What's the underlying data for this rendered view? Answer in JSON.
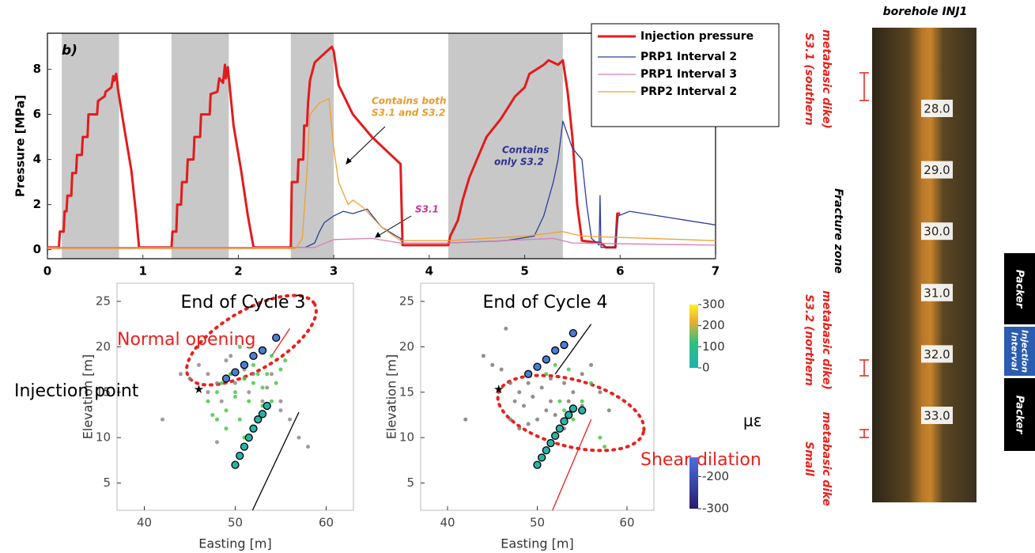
{
  "chart_data": [
    {
      "type": "line",
      "panel_label": "b)",
      "ylabel": "Pressure [MPa]",
      "xlim": [
        0,
        7
      ],
      "xticks": [
        0,
        1,
        2,
        3,
        4,
        5,
        6,
        7
      ],
      "ylim": [
        -0.4,
        9.6
      ],
      "yticks": [
        0,
        2,
        4,
        6,
        8
      ],
      "grid": false,
      "legend": "upper right",
      "shaded_intervals": [
        [
          0.15,
          0.75
        ],
        [
          1.3,
          1.9
        ],
        [
          2.55,
          3.0
        ],
        [
          4.2,
          5.4
        ]
      ],
      "shade_color": "#c8c8c8",
      "series": [
        {
          "name": "Injection pressure",
          "color": "#e41a1c",
          "width": 3,
          "x": [
            0,
            0.12,
            0.13,
            0.17,
            0.18,
            0.2,
            0.21,
            0.25,
            0.26,
            0.3,
            0.31,
            0.36,
            0.37,
            0.42,
            0.43,
            0.52,
            0.53,
            0.6,
            0.61,
            0.67,
            0.69,
            0.7,
            0.72,
            0.74,
            0.8,
            0.88,
            0.93,
            0.96,
            1.3,
            1.31,
            1.35,
            1.36,
            1.4,
            1.41,
            1.46,
            1.47,
            1.53,
            1.54,
            1.6,
            1.61,
            1.7,
            1.71,
            1.78,
            1.8,
            1.84,
            1.86,
            1.87,
            1.89,
            1.95,
            2.03,
            2.1,
            2.16,
            2.5,
            2.55,
            2.56,
            2.62,
            2.63,
            2.68,
            2.69,
            2.72,
            2.73,
            2.75,
            2.8,
            2.9,
            2.98,
            3.0,
            3.05,
            3.2,
            3.4,
            3.7,
            3.72,
            4.2,
            4.22,
            4.3,
            4.35,
            4.42,
            4.5,
            4.6,
            4.75,
            4.9,
            5.0,
            5.05,
            5.2,
            5.25,
            5.35,
            5.4,
            5.45,
            5.5,
            5.55,
            5.6,
            5.8,
            5.85,
            5.95,
            5.97,
            6.0
          ],
          "values": [
            0.1,
            0.1,
            0.8,
            0.8,
            1.7,
            1.7,
            2.4,
            2.4,
            3.4,
            3.4,
            4.2,
            4.2,
            5.0,
            5.0,
            6.0,
            6.0,
            6.6,
            6.8,
            7.0,
            7.2,
            7.7,
            7.5,
            7.8,
            7.1,
            5.5,
            3.5,
            1.5,
            0.1,
            0.1,
            0.8,
            0.8,
            2.0,
            2.0,
            3.0,
            3.0,
            4.0,
            4.0,
            5.0,
            5.0,
            6.0,
            6.0,
            6.9,
            7.0,
            7.6,
            7.4,
            8.2,
            7.6,
            8.1,
            5.5,
            3.5,
            1.5,
            0.1,
            0.1,
            0.1,
            3.0,
            3.0,
            4.0,
            4.0,
            5.5,
            5.5,
            6.5,
            7.5,
            8.3,
            8.7,
            9.0,
            8.8,
            7.3,
            6.0,
            5.0,
            3.8,
            0.2,
            0.2,
            0.6,
            1.3,
            2.2,
            3.2,
            4.0,
            5.0,
            5.8,
            6.8,
            7.2,
            7.8,
            8.2,
            8.4,
            8.2,
            8.4,
            7.0,
            5.0,
            2.0,
            0.4,
            0.3,
            0.1,
            0.1,
            1.6,
            1.6
          ]
        },
        {
          "name": "PRP1 Interval 2",
          "color": "#2c3e9e",
          "width": 1.3,
          "x": [
            0,
            2.7,
            2.8,
            2.85,
            2.9,
            3.0,
            3.1,
            3.2,
            3.35,
            3.5,
            3.7,
            3.72,
            4.2,
            4.8,
            5.1,
            5.2,
            5.3,
            5.35,
            5.4,
            5.5,
            5.6,
            5.65,
            5.7,
            5.78,
            5.79,
            5.8,
            5.95,
            5.98,
            6.1,
            7
          ],
          "values": [
            0.1,
            0.1,
            0.3,
            0.8,
            1.2,
            1.5,
            1.7,
            1.6,
            1.8,
            1.0,
            0.5,
            0.3,
            0.3,
            0.4,
            0.6,
            1.5,
            3.0,
            4.0,
            5.7,
            4.5,
            4.0,
            2.0,
            0.5,
            0.2,
            2.4,
            0.1,
            0.1,
            1.5,
            1.7,
            1.1
          ]
        },
        {
          "name": "PRP1 Interval 3",
          "color": "#d67fb4",
          "width": 1.3,
          "x": [
            0,
            2.8,
            3.0,
            3.4,
            3.7,
            4.2,
            5.3,
            5.5,
            7
          ],
          "values": [
            0.1,
            0.1,
            0.45,
            0.5,
            0.3,
            0.3,
            0.5,
            0.3,
            0.2
          ]
        },
        {
          "name": "PRP2 Interval 2",
          "color": "#f0a030",
          "width": 1.3,
          "x": [
            0,
            2.6,
            2.67,
            2.72,
            2.75,
            2.85,
            2.95,
            3.0,
            3.05,
            3.15,
            3.2,
            3.3,
            3.5,
            3.7,
            4.2,
            5.0,
            5.4,
            5.6,
            7
          ],
          "values": [
            0.05,
            0.05,
            0.5,
            3.5,
            6.0,
            6.5,
            6.7,
            4.5,
            3.0,
            2.0,
            2.2,
            1.9,
            1.0,
            0.4,
            0.4,
            0.6,
            0.8,
            0.6,
            0.4
          ]
        }
      ],
      "annotations": [
        {
          "lines": [
            "Contains both",
            "S3.1 and S3.2"
          ],
          "color": "#e89c2c"
        },
        {
          "lines": [
            "Contains",
            "only S3.2"
          ],
          "color": "#2e3192"
        },
        {
          "lines": [
            "S3.1"
          ],
          "color": "#cc3399"
        }
      ]
    },
    {
      "type": "scatter",
      "title": "End of Cycle 3",
      "xlabel": "Easting [m]",
      "ylabel": "Elevation [m]",
      "xlim": [
        37,
        63
      ],
      "xticks": [
        40,
        50,
        60
      ],
      "ylim": [
        2,
        27
      ],
      "yticks": [
        5,
        10,
        15,
        20,
        25
      ],
      "grid": false,
      "annotations": [
        {
          "text": "Normal opening",
          "color": "#e8211c"
        },
        {
          "text": "Injection point",
          "color": "#000000"
        }
      ],
      "lines": [
        {
          "color": "#000000",
          "x": [
            51.9,
            57
          ],
          "values": [
            2,
            12.8
          ]
        },
        {
          "color": "#e8211c",
          "x": [
            54,
            56
          ],
          "values": [
            19,
            22
          ]
        }
      ],
      "series": [
        {
          "marker": "dot",
          "color": "#8c7f86",
          "x": [
            44,
            45,
            46,
            47,
            47,
            48,
            48.5,
            49,
            49.5,
            50,
            51,
            51.5,
            52,
            53,
            53.5,
            54,
            55,
            56,
            57,
            58,
            42,
            48,
            52,
            55,
            49.5,
            51
          ],
          "values": [
            17,
            16.5,
            18,
            15,
            17,
            16,
            14,
            18.5,
            17,
            16,
            16.5,
            15,
            17,
            14,
            15.5,
            17,
            13,
            12,
            10,
            9,
            12,
            9.5,
            11,
            14,
            19,
            17.5
          ]
        },
        {
          "marker": "dot",
          "color": "#3cc43c",
          "x": [
            47,
            48,
            48.5,
            49,
            49.5,
            50,
            50.5,
            51,
            51.5,
            52,
            52.5,
            53,
            53.5,
            54,
            54.5,
            55,
            49,
            48,
            51,
            53,
            50,
            52,
            54,
            55.5,
            47.5,
            50.5
          ],
          "values": [
            14,
            15,
            16,
            13,
            17,
            15,
            12,
            16.5,
            14,
            18,
            17,
            15.5,
            17,
            19,
            16,
            17.5,
            11,
            12,
            10,
            13.5,
            14.5,
            16,
            14,
            18.5,
            12.5,
            20
          ]
        },
        {
          "marker": "circle",
          "color": "#2bb3a8",
          "x": [
            50,
            50.5,
            51,
            51.5,
            52,
            52.5,
            53,
            53.5
          ],
          "values": [
            7,
            8,
            9,
            10,
            11,
            12,
            12.6,
            13.5
          ]
        },
        {
          "marker": "circle",
          "color": "#4a7fd8",
          "x": [
            49,
            50,
            51,
            52,
            53,
            54.5
          ],
          "values": [
            16.5,
            17.2,
            18,
            19,
            19.6,
            21
          ]
        },
        {
          "marker": "star",
          "color": "#000000",
          "x": [
            46
          ],
          "values": [
            15.3
          ]
        }
      ]
    },
    {
      "type": "scatter",
      "title": "End of Cycle 4",
      "xlabel": "Easting [m]",
      "ylabel": "Elevation [m]",
      "xlim": [
        37,
        63
      ],
      "xticks": [
        40,
        50,
        60
      ],
      "ylim": [
        2,
        27
      ],
      "yticks": [
        5,
        10,
        15,
        20,
        25
      ],
      "grid": false,
      "annotations": [
        {
          "text": "Shear dilation",
          "color": "#e8211c"
        }
      ],
      "lines": [
        {
          "color": "#000000",
          "x": [
            52,
            56
          ],
          "values": [
            17,
            22.5
          ]
        },
        {
          "color": "#e8211c",
          "x": [
            51.7,
            56
          ],
          "values": [
            2,
            12
          ]
        }
      ],
      "series": [
        {
          "marker": "dot",
          "color": "#7a7075",
          "x": [
            44,
            45,
            46,
            47,
            47.5,
            48,
            48.5,
            49,
            49.5,
            50,
            51,
            51.5,
            52,
            53,
            53.5,
            54,
            55,
            56,
            57,
            58,
            42,
            48,
            52,
            55,
            46.5,
            50.5,
            53,
            47,
            49,
            51.5
          ],
          "values": [
            19,
            18,
            17.5,
            16,
            14,
            15,
            13.5,
            16,
            14.5,
            12,
            13,
            14,
            12.5,
            11,
            14,
            15,
            17,
            18,
            15,
            13,
            12,
            11,
            10.5,
            13.5,
            22,
            15.5,
            16,
            12,
            11.5,
            16.5
          ]
        },
        {
          "marker": "dot",
          "color": "#3cc43c",
          "x": [
            51,
            52,
            53,
            54,
            55,
            56,
            57,
            57.5,
            53.5,
            52.5
          ],
          "values": [
            17,
            18,
            13,
            12,
            14,
            16,
            10,
            9,
            17.5,
            14
          ]
        },
        {
          "marker": "circle",
          "color": "#2bb3a8",
          "x": [
            50,
            50.5,
            51,
            51.5,
            52,
            52.5,
            53,
            53.5,
            54,
            55
          ],
          "values": [
            7,
            7.8,
            8.6,
            9.4,
            10.2,
            11,
            11.8,
            12.5,
            13.2,
            13
          ]
        },
        {
          "marker": "circle",
          "color": "#4a7fd8",
          "x": [
            49,
            50,
            51,
            52,
            53,
            54
          ],
          "values": [
            17,
            17.8,
            18.6,
            19.6,
            20.2,
            21.5
          ]
        },
        {
          "marker": "star",
          "color": "#000000",
          "x": [
            45.7
          ],
          "values": [
            15.3
          ]
        }
      ],
      "colorbar": {
        "label": "με",
        "segments": [
          {
            "lim": [
              0,
              300
            ],
            "ticks": [
              300,
              200,
              100,
              0
            ]
          },
          {
            "lim": [
              -300,
              -140
            ],
            "ticks": [
              -200,
              -300
            ]
          }
        ]
      }
    }
  ],
  "borehole": {
    "title": "borehole INJ1",
    "depth_ticks": [
      {
        "value": 28,
        "label": "28.0"
      },
      {
        "value": 29,
        "label": "29.0"
      },
      {
        "value": 30,
        "label": "30.0"
      },
      {
        "value": 31,
        "label": "31.0"
      },
      {
        "value": 32,
        "label": "32.0"
      },
      {
        "value": 33,
        "label": "33.0"
      }
    ],
    "labels": [
      {
        "lines": [
          "S3.1 (southern",
          "metabasic dike)"
        ],
        "color": "#e8211c"
      },
      {
        "lines": [
          "Fracture zone"
        ],
        "color": "#000000"
      },
      {
        "lines": [
          "S3.2 (northern",
          "metabasic dike)"
        ],
        "color": "#e8211c"
      },
      {
        "lines": [
          "Small",
          "metabasic dike"
        ],
        "color": "#e8211c"
      }
    ],
    "packers": [
      {
        "lines": [
          "Packer"
        ],
        "color": "#000000"
      },
      {
        "lines": [
          "Injection",
          "Interval"
        ],
        "color": "#2a5cb0"
      },
      {
        "lines": [
          "Packer"
        ],
        "color": "#000000"
      }
    ]
  }
}
